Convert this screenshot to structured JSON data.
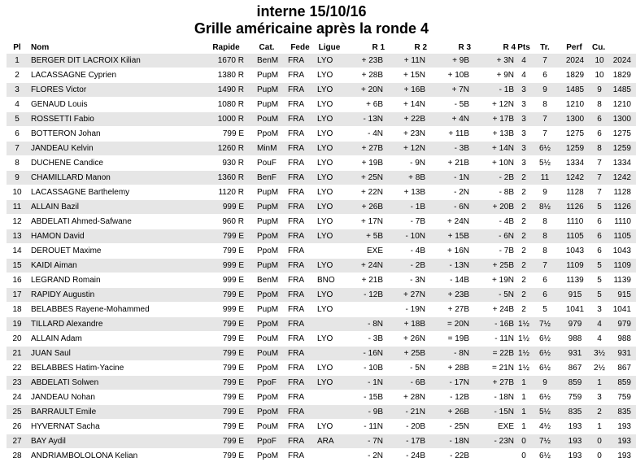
{
  "title": "interne 15/10/16",
  "subtitle": "Grille américaine après la ronde 4",
  "headers": [
    "Pl",
    "Nom",
    "Rapide",
    "Cat.",
    "Fede",
    "Ligue",
    "R 1",
    "R 2",
    "R 3",
    "R 4",
    "Pts",
    "Tr.",
    "Perf",
    "Cu."
  ],
  "rows": [
    [
      "1",
      "BERGER DIT LACROIX Kilian",
      "1670 R",
      "BenM",
      "FRA",
      "LYO",
      "+ 23B",
      "+ 11N",
      "+ 9B",
      "+ 3N",
      "4",
      "7",
      "2024",
      "10",
      "2024"
    ],
    [
      "2",
      "LACASSAGNE Cyprien",
      "1380 R",
      "PupM",
      "FRA",
      "LYO",
      "+ 28B",
      "+ 15N",
      "+ 10B",
      "+ 9N",
      "4",
      "6",
      "1829",
      "10",
      "1829"
    ],
    [
      "3",
      "FLORES Victor",
      "1490 R",
      "PupM",
      "FRA",
      "LYO",
      "+ 20N",
      "+ 16B",
      "+ 7N",
      "- 1B",
      "3",
      "9",
      "1485",
      "9",
      "1485"
    ],
    [
      "4",
      "GENAUD Louis",
      "1080 R",
      "PupM",
      "FRA",
      "LYO",
      "+ 6B",
      "+ 14N",
      "- 5B",
      "+ 12N",
      "3",
      "8",
      "1210",
      "8",
      "1210"
    ],
    [
      "5",
      "ROSSETTI Fabio",
      "1000 R",
      "PouM",
      "FRA",
      "LYO",
      "- 13N",
      "+ 22B",
      "+ 4N",
      "+ 17B",
      "3",
      "7",
      "1300",
      "6",
      "1300"
    ],
    [
      "6",
      "BOTTERON Johan",
      "799 E",
      "PpoM",
      "FRA",
      "LYO",
      "- 4N",
      "+ 23N",
      "+ 11B",
      "+ 13B",
      "3",
      "7",
      "1275",
      "6",
      "1275"
    ],
    [
      "7",
      "JANDEAU Kelvin",
      "1260 R",
      "MinM",
      "FRA",
      "LYO",
      "+ 27B",
      "+ 12N",
      "- 3B",
      "+ 14N",
      "3",
      "6½",
      "1259",
      "8",
      "1259"
    ],
    [
      "8",
      "DUCHENE Candice",
      "930 R",
      "PouF",
      "FRA",
      "LYO",
      "+ 19B",
      "- 9N",
      "+ 21B",
      "+ 10N",
      "3",
      "5½",
      "1334",
      "7",
      "1334"
    ],
    [
      "9",
      "CHAMILLARD Manon",
      "1360 R",
      "BenF",
      "FRA",
      "LYO",
      "+ 25N",
      "+ 8B",
      "- 1N",
      "- 2B",
      "2",
      "11",
      "1242",
      "7",
      "1242"
    ],
    [
      "10",
      "LACASSAGNE Barthelemy",
      "1120 R",
      "PupM",
      "FRA",
      "LYO",
      "+ 22N",
      "+ 13B",
      "- 2N",
      "- 8B",
      "2",
      "9",
      "1128",
      "7",
      "1128"
    ],
    [
      "11",
      "ALLAIN Bazil",
      "999 E",
      "PupM",
      "FRA",
      "LYO",
      "+ 26B",
      "- 1B",
      "- 6N",
      "+ 20B",
      "2",
      "8½",
      "1126",
      "5",
      "1126"
    ],
    [
      "12",
      "ABDELATI Ahmed-Safwane",
      "960 R",
      "PupM",
      "FRA",
      "LYO",
      "+ 17N",
      "- 7B",
      "+ 24N",
      "- 4B",
      "2",
      "8",
      "1110",
      "6",
      "1110"
    ],
    [
      "13",
      "HAMON David",
      "799 E",
      "PpoM",
      "FRA",
      "LYO",
      "+ 5B",
      "- 10N",
      "+ 15B",
      "- 6N",
      "2",
      "8",
      "1105",
      "6",
      "1105"
    ],
    [
      "14",
      "DEROUET Maxime",
      "799 E",
      "PpoM",
      "FRA",
      "",
      "EXE",
      "- 4B",
      "+ 16N",
      "- 7B",
      "2",
      "8",
      "1043",
      "6",
      "1043"
    ],
    [
      "15",
      "KAIDI Aiman",
      "999 E",
      "PupM",
      "FRA",
      "LYO",
      "+ 24N",
      "- 2B",
      "- 13N",
      "+ 25B",
      "2",
      "7",
      "1109",
      "5",
      "1109"
    ],
    [
      "16",
      "LEGRAND Romain",
      "999 E",
      "BenM",
      "FRA",
      "BNO",
      "+ 21B",
      "- 3N",
      "- 14B",
      "+ 19N",
      "2",
      "6",
      "1139",
      "5",
      "1139"
    ],
    [
      "17",
      "RAPIDY Augustin",
      "799 E",
      "PpoM",
      "FRA",
      "LYO",
      "- 12B",
      "+ 27N",
      "+ 23B",
      "- 5N",
      "2",
      "6",
      "915",
      "5",
      "915"
    ],
    [
      "18",
      "BELABBES Rayene-Mohammed",
      "999 E",
      "PupM",
      "FRA",
      "LYO",
      "",
      "- 19N",
      "+ 27B",
      "+ 24B",
      "2",
      "5",
      "1041",
      "3",
      "1041"
    ],
    [
      "19",
      "TILLARD Alexandre",
      "799 E",
      "PpoM",
      "FRA",
      "",
      "- 8N",
      "+ 18B",
      "= 20N",
      "- 16B",
      "1½",
      "7½",
      "979",
      "4",
      "979"
    ],
    [
      "20",
      "ALLAIN Adam",
      "799 E",
      "PouM",
      "FRA",
      "LYO",
      "- 3B",
      "+ 26N",
      "= 19B",
      "- 11N",
      "1½",
      "6½",
      "988",
      "4",
      "988"
    ],
    [
      "21",
      "JUAN Saul",
      "799 E",
      "PouM",
      "FRA",
      "",
      "- 16N",
      "+ 25B",
      "- 8N",
      "= 22B",
      "1½",
      "6½",
      "931",
      "3½",
      "931"
    ],
    [
      "22",
      "BELABBES Hatim-Yacine",
      "799 E",
      "PpoM",
      "FRA",
      "LYO",
      "- 10B",
      "- 5N",
      "+ 28B",
      "= 21N",
      "1½",
      "6½",
      "867",
      "2½",
      "867"
    ],
    [
      "23",
      "ABDELATI Solwen",
      "799 E",
      "PpoF",
      "FRA",
      "LYO",
      "- 1N",
      "- 6B",
      "- 17N",
      "+ 27B",
      "1",
      "9",
      "859",
      "1",
      "859"
    ],
    [
      "24",
      "JANDEAU Nohan",
      "799 E",
      "PpoM",
      "FRA",
      "",
      "- 15B",
      "+ 28N",
      "- 12B",
      "- 18N",
      "1",
      "6½",
      "759",
      "3",
      "759"
    ],
    [
      "25",
      "BARRAULT Emile",
      "799 E",
      "PpoM",
      "FRA",
      "",
      "- 9B",
      "- 21N",
      "+ 26B",
      "- 15N",
      "1",
      "5½",
      "835",
      "2",
      "835"
    ],
    [
      "26",
      "HYVERNAT Sacha",
      "799 E",
      "PouM",
      "FRA",
      "LYO",
      "- 11N",
      "- 20B",
      "- 25N",
      "EXE",
      "1",
      "4½",
      "193",
      "1",
      "193"
    ],
    [
      "27",
      "BAY Aydil",
      "799 E",
      "PpoF",
      "FRA",
      "ARA",
      "- 7N",
      "- 17B",
      "- 18N",
      "- 23N",
      "0",
      "7½",
      "193",
      "0",
      "193"
    ],
    [
      "28",
      "ANDRIAMBOLOLONA Kelian",
      "799 E",
      "PpoM",
      "FRA",
      "",
      "- 2N",
      "- 24B",
      "- 22B",
      "",
      "0",
      "6½",
      "193",
      "0",
      "193"
    ]
  ]
}
